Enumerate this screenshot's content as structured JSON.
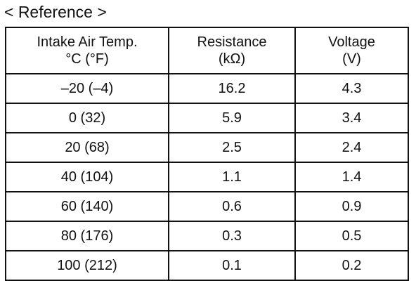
{
  "caption": "< Reference >",
  "table": {
    "headers": [
      {
        "line1": "Intake Air Temp.",
        "line2": "°C (°F)"
      },
      {
        "line1": "Resistance",
        "line2": "(kΩ)"
      },
      {
        "line1": "Voltage",
        "line2": "(V)"
      }
    ],
    "rows": [
      {
        "temp": "–20 (–4)",
        "resistance": "16.2",
        "voltage": "4.3"
      },
      {
        "temp": "0 (32)",
        "resistance": "5.9",
        "voltage": "3.4"
      },
      {
        "temp": "20 (68)",
        "resistance": "2.5",
        "voltage": "2.4"
      },
      {
        "temp": "40 (104)",
        "resistance": "1.1",
        "voltage": "1.4"
      },
      {
        "temp": "60 (140)",
        "resistance": "0.6",
        "voltage": "0.9"
      },
      {
        "temp": "80 (176)",
        "resistance": "0.3",
        "voltage": "0.5"
      },
      {
        "temp": "100 (212)",
        "resistance": "0.1",
        "voltage": "0.2"
      }
    ]
  }
}
